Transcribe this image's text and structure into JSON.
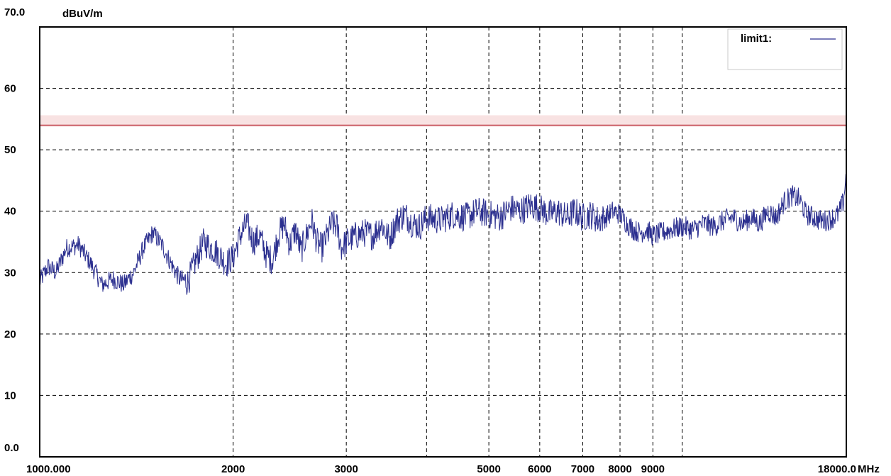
{
  "chart_data": {
    "type": "line",
    "title": "",
    "ylabel": "dBuV/m",
    "xlabel": "MHz",
    "x_scale": "log",
    "xlim": [
      1000,
      18000
    ],
    "ylim": [
      0,
      70
    ],
    "y_ticks": [
      0,
      10,
      20,
      30,
      40,
      50,
      60,
      70
    ],
    "y_tick_labels": [
      "0.0",
      "10",
      "20",
      "30",
      "40",
      "50",
      "60",
      "70.0"
    ],
    "x_ticks": [
      1000,
      2000,
      3000,
      4000,
      5000,
      6000,
      7000,
      8000,
      9000,
      10000,
      18000
    ],
    "x_tick_labels": [
      "1000.000",
      "2000",
      "3000",
      "",
      "5000",
      "6000",
      "7000",
      "8000",
      "9000",
      "",
      "18000.0"
    ],
    "grid": true,
    "legend_position": "top-right",
    "colors": {
      "limit": "#c0404a",
      "measurement": "#2b2f8f",
      "limit_band": "#f8e2e2"
    },
    "series": [
      {
        "name": "limit1:",
        "kind": "limit",
        "x": [
          1000,
          18000
        ],
        "y": [
          54,
          54
        ]
      },
      {
        "kind": "measurement",
        "x": [
          1000,
          1030,
          1060,
          1100,
          1150,
          1200,
          1250,
          1300,
          1350,
          1400,
          1450,
          1500,
          1550,
          1600,
          1650,
          1700,
          1750,
          1800,
          1850,
          1900,
          1950,
          2000,
          2050,
          2100,
          2150,
          2200,
          2250,
          2300,
          2350,
          2400,
          2450,
          2500,
          2550,
          2600,
          2650,
          2700,
          2750,
          2800,
          2850,
          2900,
          2950,
          3000,
          3100,
          3200,
          3300,
          3400,
          3500,
          3600,
          3700,
          3800,
          3900,
          4000,
          4200,
          4400,
          4600,
          4800,
          5000,
          5200,
          5400,
          5600,
          5800,
          6000,
          6200,
          6400,
          6600,
          6800,
          7000,
          7200,
          7400,
          7600,
          7800,
          8000,
          8200,
          8400,
          8600,
          8800,
          9000,
          9300,
          9600,
          10000,
          10400,
          10800,
          11200,
          11600,
          12000,
          12400,
          12800,
          13200,
          13600,
          14000,
          14400,
          14800,
          15200,
          15600,
          16000,
          16400,
          16800,
          17200,
          17500,
          17800,
          18000
        ],
        "y": [
          28.5,
          31,
          30,
          34,
          34.5,
          31.5,
          28,
          29,
          28,
          30,
          34,
          36.5,
          34.5,
          31.5,
          29,
          28.5,
          32,
          35,
          34,
          33,
          31.5,
          32.5,
          36,
          38,
          35,
          36,
          33,
          32,
          36,
          38,
          34.5,
          37,
          33.5,
          36,
          38.5,
          35,
          34,
          36,
          38,
          37.5,
          34,
          35,
          36,
          36.5,
          36,
          38,
          35.5,
          38.5,
          39.5,
          38,
          37.5,
          39,
          38.5,
          39.5,
          39,
          40,
          39.5,
          39,
          40.5,
          40,
          41,
          40.5,
          39.5,
          40,
          39,
          40,
          39,
          39.5,
          38.5,
          39,
          40,
          39.5,
          38,
          37,
          36.5,
          37,
          36,
          36.5,
          37,
          37.5,
          37,
          38,
          37.5,
          38.5,
          39,
          38,
          39,
          38,
          40,
          39,
          41.5,
          42.5,
          42,
          39.5,
          39,
          38.5,
          38.5,
          39,
          39.5,
          41.5,
          46
        ]
      }
    ]
  }
}
